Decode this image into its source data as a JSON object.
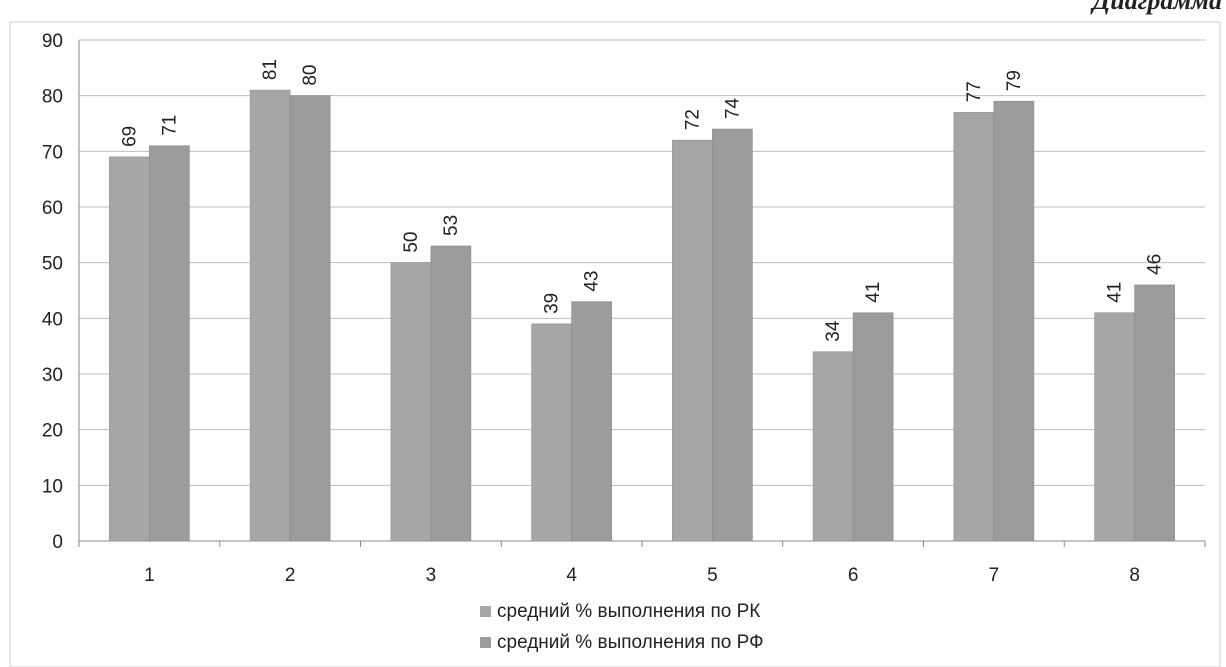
{
  "header": {
    "corner_title": "Диаграмма"
  },
  "chart_data": {
    "type": "bar",
    "categories": [
      "1",
      "2",
      "3",
      "4",
      "5",
      "6",
      "7",
      "8"
    ],
    "series": [
      {
        "name": "средний % выполнения по РК",
        "values": [
          69,
          81,
          50,
          39,
          72,
          34,
          77,
          41
        ],
        "color": "#a6a6a6"
      },
      {
        "name": "средний % выполнения по РФ",
        "values": [
          71,
          80,
          53,
          43,
          74,
          41,
          79,
          46
        ],
        "color": "#9c9c9c"
      }
    ],
    "yticks": [
      0,
      10,
      20,
      30,
      40,
      50,
      60,
      70,
      80,
      90
    ],
    "ylim": [
      0,
      90
    ],
    "grid": true,
    "data_labels": true,
    "legend_position": "bottom",
    "title": "",
    "xlabel": "",
    "ylabel": ""
  }
}
